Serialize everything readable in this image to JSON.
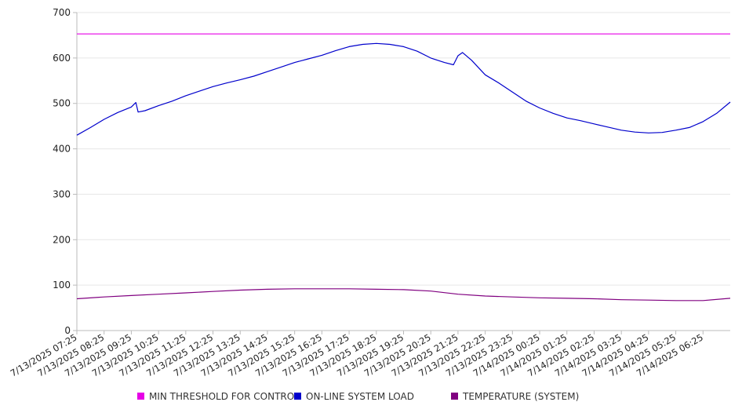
{
  "chart_data": {
    "type": "line",
    "ylim": [
      0,
      700
    ],
    "y_ticks": [
      0,
      100,
      200,
      300,
      400,
      500,
      600,
      700
    ],
    "x_tick_labels": [
      "7/13/2025 07:25",
      "7/13/2025 08:25",
      "7/13/2025 09:25",
      "7/13/2025 10:25",
      "7/13/2025 11:25",
      "7/13/2025 12:25",
      "7/13/2025 13:25",
      "7/13/2025 14:25",
      "7/13/2025 15:25",
      "7/13/2025 16:25",
      "7/13/2025 17:25",
      "7/13/2025 18:25",
      "7/13/2025 19:25",
      "7/13/2025 20:25",
      "7/13/2025 21:25",
      "7/13/2025 22:25",
      "7/13/2025 23:25",
      "7/14/2025 00:25",
      "7/14/2025 01:25",
      "7/14/2025 02:25",
      "7/14/2025 03:25",
      "7/14/2025 04:25",
      "7/14/2025 05:25",
      "7/14/2025 06:25"
    ],
    "x_range": [
      "7/13/2025 07:25",
      "7/14/2025 07:25"
    ],
    "grid": "horizontal",
    "legend_position": "bottom",
    "series": [
      {
        "name": "MIN THRESHOLD FOR CONTROL",
        "color": "#e600e6",
        "x": [
          "7/13/2025 07:25",
          "7/14/2025 07:25"
        ],
        "y": [
          653,
          653
        ]
      },
      {
        "name": "ON-LINE SYSTEM LOAD",
        "color": "#0000cc",
        "x": [
          "7/13/2025 07:25",
          "7/13/2025 07:55",
          "7/13/2025 08:25",
          "7/13/2025 08:55",
          "7/13/2025 09:25",
          "7/13/2025 09:35",
          "7/13/2025 09:40",
          "7/13/2025 09:55",
          "7/13/2025 10:25",
          "7/13/2025 10:55",
          "7/13/2025 11:25",
          "7/13/2025 11:55",
          "7/13/2025 12:25",
          "7/13/2025 12:55",
          "7/13/2025 13:25",
          "7/13/2025 13:55",
          "7/13/2025 14:25",
          "7/13/2025 14:55",
          "7/13/2025 15:25",
          "7/13/2025 15:55",
          "7/13/2025 16:25",
          "7/13/2025 16:55",
          "7/13/2025 17:25",
          "7/13/2025 17:55",
          "7/13/2025 18:25",
          "7/13/2025 18:55",
          "7/13/2025 19:25",
          "7/13/2025 19:55",
          "7/13/2025 20:25",
          "7/13/2025 20:55",
          "7/13/2025 21:15",
          "7/13/2025 21:25",
          "7/13/2025 21:35",
          "7/13/2025 21:55",
          "7/13/2025 22:25",
          "7/13/2025 22:55",
          "7/13/2025 23:25",
          "7/13/2025 23:55",
          "7/14/2025 00:25",
          "7/14/2025 00:55",
          "7/14/2025 01:25",
          "7/14/2025 01:55",
          "7/14/2025 02:25",
          "7/14/2025 02:55",
          "7/14/2025 03:25",
          "7/14/2025 03:55",
          "7/14/2025 04:25",
          "7/14/2025 04:55",
          "7/14/2025 05:25",
          "7/14/2025 05:55",
          "7/14/2025 06:25",
          "7/14/2025 06:55",
          "7/14/2025 07:25"
        ],
        "y": [
          430,
          447,
          465,
          480,
          492,
          502,
          481,
          484,
          495,
          505,
          517,
          527,
          537,
          545,
          552,
          560,
          570,
          580,
          590,
          598,
          606,
          616,
          625,
          630,
          632,
          630,
          625,
          615,
          600,
          590,
          585,
          605,
          612,
          595,
          563,
          545,
          525,
          505,
          490,
          478,
          468,
          462,
          455,
          448,
          441,
          437,
          435,
          436,
          441,
          447,
          460,
          478,
          503
        ]
      },
      {
        "name": "TEMPERATURE (SYSTEM)",
        "color": "#800080",
        "x": [
          "7/13/2025 07:25",
          "7/13/2025 08:25",
          "7/13/2025 09:25",
          "7/13/2025 10:25",
          "7/13/2025 11:25",
          "7/13/2025 12:25",
          "7/13/2025 13:25",
          "7/13/2025 14:25",
          "7/13/2025 15:25",
          "7/13/2025 16:25",
          "7/13/2025 17:25",
          "7/13/2025 18:25",
          "7/13/2025 19:25",
          "7/13/2025 20:25",
          "7/13/2025 21:25",
          "7/13/2025 22:25",
          "7/13/2025 23:25",
          "7/14/2025 00:25",
          "7/14/2025 01:25",
          "7/14/2025 02:25",
          "7/14/2025 03:25",
          "7/14/2025 04:25",
          "7/14/2025 05:25",
          "7/14/2025 06:25",
          "7/14/2025 07:25"
        ],
        "y": [
          70,
          74,
          77,
          80,
          83,
          86,
          89,
          91,
          92,
          92,
          92,
          91,
          90,
          87,
          80,
          76,
          74,
          72,
          71,
          70,
          68,
          67,
          66,
          66,
          71
        ]
      }
    ]
  }
}
